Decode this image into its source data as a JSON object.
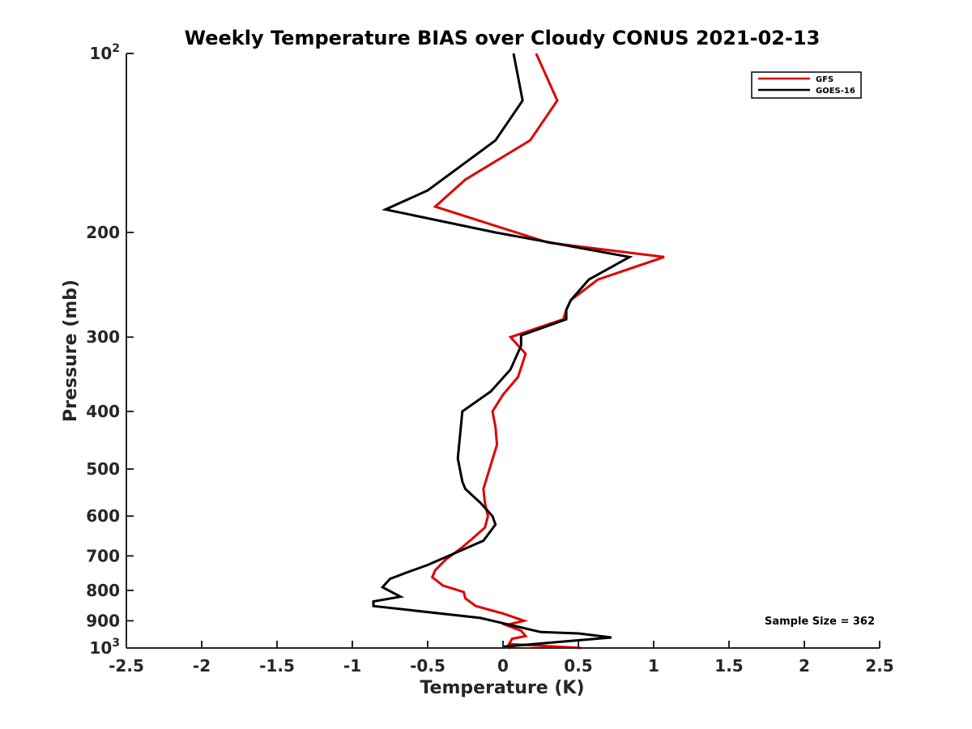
{
  "chart_data": {
    "type": "line",
    "title": "Weekly Temperature BIAS over Cloudy CONUS 2021-02-13",
    "xlabel": "Temperature (K)",
    "ylabel": "Pressure (mb)",
    "xlim": [
      -2.5,
      2.5
    ],
    "ylim": [
      100,
      1000
    ],
    "y_scale": "log",
    "y_reversed": true,
    "grid": false,
    "x_ticks": [
      -2.5,
      -2,
      -1.5,
      -1,
      -0.5,
      0,
      0.5,
      1,
      1.5,
      2,
      2.5
    ],
    "x_tick_labels": [
      "-2.5",
      "-2",
      "-1.5",
      "-1",
      "-0.5",
      "0",
      "0.5",
      "1",
      "1.5",
      "2",
      "2.5"
    ],
    "y_ticks": [
      100,
      200,
      300,
      400,
      500,
      600,
      700,
      800,
      900,
      1000
    ],
    "y_tick_labels": [
      {
        "base": "10",
        "exp": "2"
      },
      {
        "text": "200"
      },
      {
        "text": "300"
      },
      {
        "text": "400"
      },
      {
        "text": "500"
      },
      {
        "text": "600"
      },
      {
        "text": "700"
      },
      {
        "text": "800"
      },
      {
        "text": "900"
      },
      {
        "base": "10",
        "exp": "3"
      }
    ],
    "legend": {
      "position": "top-right"
    },
    "annotation": "Sample Size = 362",
    "series": [
      {
        "name": "GFS",
        "color": "#e00000",
        "points": [
          [
            0.22,
            100
          ],
          [
            0.36,
            120
          ],
          [
            0.18,
            140
          ],
          [
            -0.25,
            163
          ],
          [
            -0.45,
            181
          ],
          [
            0.3,
            208
          ],
          [
            1.07,
            220
          ],
          [
            0.63,
            240
          ],
          [
            0.45,
            260
          ],
          [
            0.42,
            270
          ],
          [
            0.4,
            280
          ],
          [
            0.05,
            300
          ],
          [
            0.15,
            320
          ],
          [
            0.1,
            350
          ],
          [
            0.0,
            375
          ],
          [
            -0.07,
            400
          ],
          [
            -0.05,
            425
          ],
          [
            -0.04,
            455
          ],
          [
            -0.1,
            510
          ],
          [
            -0.13,
            540
          ],
          [
            -0.12,
            570
          ],
          [
            -0.1,
            600
          ],
          [
            -0.12,
            627
          ],
          [
            -0.21,
            657
          ],
          [
            -0.28,
            680
          ],
          [
            -0.33,
            695
          ],
          [
            -0.38,
            710
          ],
          [
            -0.45,
            740
          ],
          [
            -0.47,
            760
          ],
          [
            -0.4,
            785
          ],
          [
            -0.26,
            805
          ],
          [
            -0.25,
            825
          ],
          [
            -0.18,
            850
          ],
          [
            0.0,
            875
          ],
          [
            0.14,
            900
          ],
          [
            0.02,
            915
          ],
          [
            0.12,
            935
          ],
          [
            0.15,
            955
          ],
          [
            0.06,
            965
          ],
          [
            0.04,
            985
          ],
          [
            0.52,
            1000
          ]
        ]
      },
      {
        "name": "GOES-16",
        "color": "#000000",
        "points": [
          [
            0.07,
            100
          ],
          [
            0.13,
            120
          ],
          [
            -0.05,
            140
          ],
          [
            -0.5,
            170
          ],
          [
            -0.78,
            183
          ],
          [
            -0.05,
            200
          ],
          [
            0.84,
            220
          ],
          [
            0.57,
            240
          ],
          [
            0.45,
            260
          ],
          [
            0.42,
            270
          ],
          [
            0.42,
            280
          ],
          [
            0.12,
            298
          ],
          [
            0.12,
            310
          ],
          [
            0.05,
            340
          ],
          [
            -0.08,
            370
          ],
          [
            -0.27,
            400
          ],
          [
            -0.3,
            480
          ],
          [
            -0.27,
            525
          ],
          [
            -0.25,
            540
          ],
          [
            -0.15,
            570
          ],
          [
            -0.07,
            600
          ],
          [
            -0.05,
            620
          ],
          [
            -0.13,
            660
          ],
          [
            -0.5,
            725
          ],
          [
            -0.63,
            745
          ],
          [
            -0.75,
            765
          ],
          [
            -0.8,
            790
          ],
          [
            -0.68,
            820
          ],
          [
            -0.86,
            835
          ],
          [
            -0.86,
            850
          ],
          [
            -0.15,
            890
          ],
          [
            0.25,
            940
          ],
          [
            0.5,
            945
          ],
          [
            0.72,
            960
          ],
          [
            0.3,
            980
          ],
          [
            0.0,
            995
          ],
          [
            0.05,
            1000
          ]
        ]
      }
    ]
  }
}
